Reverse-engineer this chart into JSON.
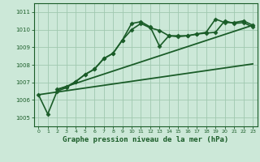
{
  "title": "Graphe pression niveau de la mer (hPa)",
  "bg_color": "#cce8d8",
  "grid_color": "#a0c8b0",
  "line_color": "#1a5c28",
  "ylim": [
    1004.5,
    1011.5
  ],
  "xlim": [
    -0.5,
    23.5
  ],
  "yticks": [
    1005,
    1006,
    1007,
    1008,
    1009,
    1010,
    1011
  ],
  "xticks": [
    0,
    1,
    2,
    3,
    4,
    5,
    6,
    7,
    8,
    9,
    10,
    11,
    12,
    13,
    14,
    15,
    16,
    17,
    18,
    19,
    20,
    21,
    22,
    23
  ],
  "series": [
    {
      "x": [
        0,
        1,
        2,
        3,
        4,
        5,
        6,
        7,
        8,
        9,
        10,
        11,
        12,
        13,
        14,
        15,
        16,
        17,
        18,
        19,
        20,
        21,
        22,
        23
      ],
      "y": [
        1006.3,
        1005.2,
        1006.5,
        1006.7,
        1007.05,
        1007.45,
        1007.75,
        1008.35,
        1008.65,
        1009.4,
        1010.0,
        1010.35,
        1010.1,
        1009.95,
        1009.65,
        1009.6,
        1009.65,
        1009.75,
        1009.8,
        1009.85,
        1010.5,
        1010.35,
        1010.4,
        1010.15
      ],
      "marker": "D",
      "markersize": 2.5,
      "linewidth": 1.2,
      "zorder": 3
    },
    {
      "x": [
        2,
        3,
        4,
        5,
        6,
        7,
        8,
        9,
        10,
        11,
        12,
        13,
        14,
        15,
        16,
        17,
        18,
        19,
        20,
        21,
        22,
        23
      ],
      "y": [
        1006.6,
        1006.75,
        1007.05,
        1007.45,
        1007.75,
        1008.35,
        1008.65,
        1009.4,
        1010.35,
        1010.45,
        1010.15,
        1009.05,
        1009.65,
        1009.65,
        1009.65,
        1009.75,
        1009.85,
        1010.6,
        1010.4,
        1010.4,
        1010.5,
        1010.25
      ],
      "marker": "D",
      "markersize": 2.5,
      "linewidth": 1.2,
      "zorder": 3
    },
    {
      "x": [
        0,
        23
      ],
      "y": [
        1006.3,
        1008.05
      ],
      "marker": null,
      "markersize": 0,
      "linewidth": 1.3,
      "zorder": 2
    },
    {
      "x": [
        2,
        23
      ],
      "y": [
        1006.6,
        1010.25
      ],
      "marker": null,
      "markersize": 0,
      "linewidth": 1.3,
      "zorder": 2
    }
  ]
}
